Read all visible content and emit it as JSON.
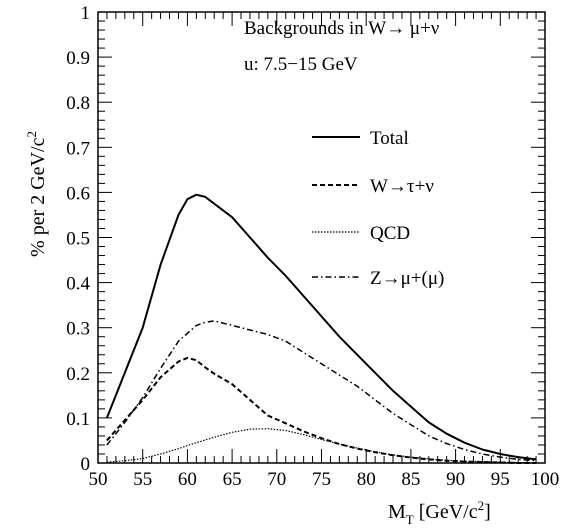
{
  "chart_data": {
    "type": "line",
    "annotations": [
      "Backgrounds in W→ μ+ν",
      "u: 7.5−15 GeV"
    ],
    "xlabel": "M",
    "xlabel_sub": "T",
    "xlabel_unit": " [GeV/c",
    "xlabel_sup": "2",
    "xlabel_close": "]",
    "ylabel": "% per 2 GeV/c",
    "ylabel_sup": "2",
    "xlim": [
      50,
      100
    ],
    "ylim": [
      0,
      1
    ],
    "xticks": [
      50,
      55,
      60,
      65,
      70,
      75,
      80,
      85,
      90,
      95,
      100
    ],
    "yticks": [
      0,
      0.1,
      0.2,
      0.3,
      0.4,
      0.5,
      0.6,
      0.7,
      0.8,
      0.9,
      1
    ],
    "ytick_labels": [
      "0",
      "0.1",
      "0.2",
      "0.3",
      "0.4",
      "0.5",
      "0.6",
      "0.7",
      "0.8",
      "0.9",
      "1"
    ],
    "legend_position": "right",
    "grid": false,
    "series": [
      {
        "name": "Total",
        "dash": "solid",
        "x": [
          51,
          53,
          55,
          57,
          59,
          60,
          61,
          62,
          63,
          65,
          67,
          69,
          71,
          73,
          75,
          77,
          79,
          81,
          83,
          85,
          87,
          89,
          91,
          93,
          95,
          97,
          99
        ],
        "y": [
          0.1,
          0.2,
          0.3,
          0.44,
          0.55,
          0.585,
          0.595,
          0.59,
          0.575,
          0.545,
          0.5,
          0.455,
          0.415,
          0.37,
          0.325,
          0.28,
          0.24,
          0.2,
          0.16,
          0.125,
          0.09,
          0.065,
          0.045,
          0.03,
          0.02,
          0.013,
          0.008
        ]
      },
      {
        "name": "W→τ+ν",
        "dash": "dashed",
        "x": [
          51,
          53,
          55,
          57,
          59,
          60,
          61,
          62,
          63,
          65,
          67,
          69,
          71,
          73,
          75,
          77,
          79,
          81,
          83,
          85,
          87,
          89,
          91,
          93,
          95,
          97,
          99
        ],
        "y": [
          0.05,
          0.095,
          0.14,
          0.19,
          0.225,
          0.233,
          0.228,
          0.212,
          0.198,
          0.175,
          0.14,
          0.105,
          0.088,
          0.07,
          0.055,
          0.042,
          0.032,
          0.024,
          0.017,
          0.012,
          0.008,
          0.005,
          0.003,
          0.002,
          0.001,
          0.0,
          0.0
        ]
      },
      {
        "name": "QCD",
        "dash": "dotted",
        "x": [
          51,
          53,
          55,
          57,
          59,
          61,
          63,
          65,
          67,
          69,
          71,
          73,
          75,
          77,
          79,
          81,
          83,
          85,
          87,
          89,
          91,
          93,
          95,
          97,
          99
        ],
        "y": [
          0.002,
          0.005,
          0.01,
          0.02,
          0.032,
          0.045,
          0.057,
          0.068,
          0.075,
          0.076,
          0.072,
          0.063,
          0.052,
          0.042,
          0.033,
          0.025,
          0.018,
          0.013,
          0.009,
          0.006,
          0.004,
          0.003,
          0.002,
          0.001,
          0.0
        ]
      },
      {
        "name": "Z→μ+(μ)",
        "dash": "dashdot",
        "x": [
          51,
          53,
          55,
          57,
          59,
          61,
          62,
          63,
          65,
          67,
          69,
          71,
          73,
          75,
          77,
          79,
          81,
          83,
          85,
          87,
          89,
          91,
          93,
          95,
          97,
          99
        ],
        "y": [
          0.04,
          0.09,
          0.145,
          0.21,
          0.27,
          0.305,
          0.312,
          0.315,
          0.305,
          0.295,
          0.285,
          0.27,
          0.245,
          0.22,
          0.195,
          0.17,
          0.14,
          0.11,
          0.085,
          0.06,
          0.043,
          0.03,
          0.02,
          0.013,
          0.008,
          0.005
        ]
      }
    ]
  }
}
